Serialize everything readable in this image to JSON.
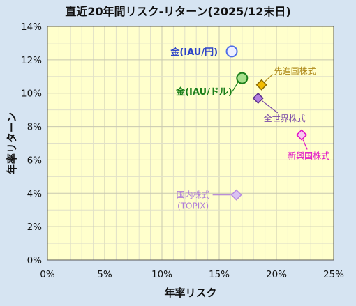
{
  "chart_data": {
    "type": "scatter",
    "title": "直近20年間リスク-リターン(2025/12末日)",
    "xlabel": "年率リスク",
    "ylabel": "年率リターン",
    "xlim": [
      0,
      25
    ],
    "ylim": [
      0,
      14
    ],
    "x_ticks": [
      0,
      5,
      10,
      15,
      20,
      25
    ],
    "y_ticks": [
      0,
      2,
      4,
      6,
      8,
      10,
      12,
      14
    ],
    "x_tick_labels": [
      "0%",
      "5%",
      "10%",
      "15%",
      "20%",
      "25%"
    ],
    "y_tick_labels": [
      "0%",
      "2%",
      "4%",
      "6%",
      "8%",
      "10%",
      "12%",
      "14%"
    ],
    "grid": true,
    "colors": {
      "plot_bg": "#ffffcc",
      "page_bg": "#d6e4f2",
      "grid": "#d9d9c0"
    },
    "points": [
      {
        "label": "金(IAU/円)",
        "x": 16.1,
        "y": 12.5,
        "marker": "circle",
        "color": "#4f6ee8",
        "fill": "#eef0ff",
        "text_color": "#2e44c8",
        "bold": true
      },
      {
        "label": "金(IAU/ドル)",
        "x": 17.0,
        "y": 10.9,
        "marker": "circle",
        "color": "#1a7f1a",
        "fill": "#a8e08c",
        "text_color": "#1a7f1a",
        "bold": true
      },
      {
        "label": "先進国株式",
        "x": 18.7,
        "y": 10.5,
        "marker": "diamond",
        "color": "#8a6a00",
        "fill": "#f2bc00",
        "text_color": "#b08c1c",
        "bold": false
      },
      {
        "label": "全世界株式",
        "x": 18.4,
        "y": 9.7,
        "marker": "diamond",
        "color": "#5a2f8a",
        "fill": "#b37fe0",
        "text_color": "#7a4aa8",
        "bold": false
      },
      {
        "label": "新興国株式",
        "x": 22.2,
        "y": 7.5,
        "marker": "diamond",
        "color": "#e010c8",
        "fill": "#f8c8f0",
        "text_color": "#e010c8",
        "bold": false
      },
      {
        "label": "国内株式\n(TOPIX)",
        "x": 16.5,
        "y": 3.9,
        "marker": "diamond",
        "color": "#b88ae0",
        "fill": "#d9c2f2",
        "text_color": "#b07ed8",
        "bold": false
      }
    ]
  }
}
